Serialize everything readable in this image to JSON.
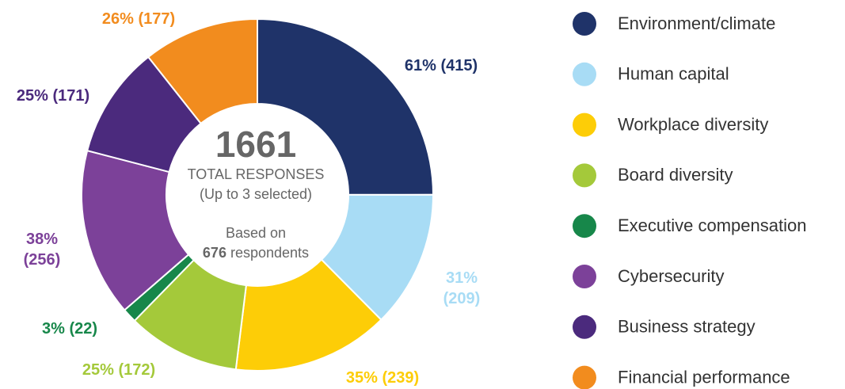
{
  "chart_data": {
    "type": "donut",
    "categories": [
      "Environment/climate",
      "Human capital",
      "Workplace diversity",
      "Board diversity",
      "Executive compensation",
      "Cybersecurity",
      "Business strategy",
      "Financial performance"
    ],
    "values": [
      415,
      209,
      239,
      172,
      22,
      256,
      171,
      177
    ],
    "value_labels": [
      "61% (415)",
      "31% (209)",
      "35% (239)",
      "25% (172)",
      "3% (22)",
      "38% (256)",
      "25% (171)",
      "26% (177)"
    ],
    "colors": [
      "#1f3369",
      "#a8dcf5",
      "#fdcd07",
      "#a4c93a",
      "#17874a",
      "#7c4199",
      "#4b2a7d",
      "#f28c1e"
    ],
    "center": {
      "total": "1661",
      "line1": "TOTAL RESPONSES",
      "line2": "(Up to 3 selected)",
      "line3": "Based on",
      "respondents": "676",
      "line4": "respondents"
    }
  }
}
